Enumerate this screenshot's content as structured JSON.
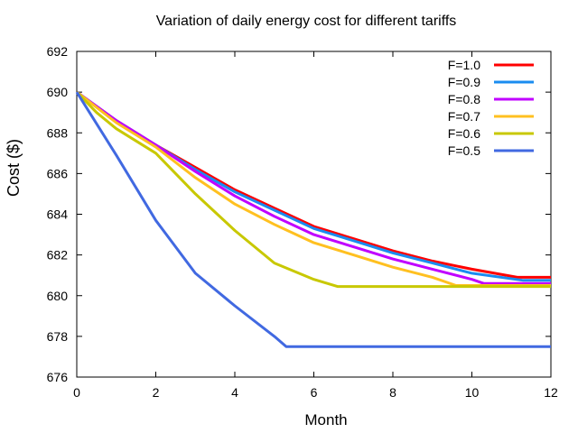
{
  "chart_data": {
    "type": "line",
    "title": "Variation of daily energy cost for different tariffs",
    "xlabel": "Month",
    "ylabel": "Cost ($)",
    "xlim": [
      0,
      12
    ],
    "ylim": [
      676,
      692
    ],
    "xticks": [
      0,
      2,
      4,
      6,
      8,
      10,
      12
    ],
    "yticks": [
      676,
      678,
      680,
      682,
      684,
      686,
      688,
      690,
      692
    ],
    "grid": false,
    "legend_position": "top-right",
    "series": [
      {
        "name": "F=1.0",
        "color": "#ff0000",
        "x": [
          0,
          1,
          2,
          3,
          4,
          5,
          6,
          7,
          8,
          9,
          10,
          11.15,
          12
        ],
        "y": [
          690,
          688.6,
          687.4,
          686.3,
          685.2,
          684.3,
          683.4,
          682.8,
          682.2,
          681.7,
          681.3,
          680.9,
          680.9
        ]
      },
      {
        "name": "F=0.9",
        "color": "#1a8cf0",
        "x": [
          0,
          1,
          2,
          3,
          4,
          5,
          6,
          7,
          8,
          9,
          10,
          11.3,
          12
        ],
        "y": [
          690,
          688.6,
          687.4,
          686.2,
          685.1,
          684.2,
          683.3,
          682.7,
          682.1,
          681.6,
          681.1,
          680.75,
          680.75
        ]
      },
      {
        "name": "F=0.8",
        "color": "#c000ff",
        "x": [
          0,
          1,
          2,
          3,
          4,
          5,
          6,
          7,
          8,
          9,
          10,
          10.3,
          12
        ],
        "y": [
          690,
          688.6,
          687.4,
          686.1,
          684.9,
          683.9,
          683.0,
          682.4,
          681.8,
          681.3,
          680.8,
          680.6,
          680.6
        ]
      },
      {
        "name": "F=0.7",
        "color": "#ffc020",
        "x": [
          0,
          1,
          2,
          3,
          4,
          5,
          6,
          7,
          8,
          9,
          9.6,
          12
        ],
        "y": [
          690,
          688.5,
          687.3,
          685.8,
          684.5,
          683.5,
          682.6,
          682.0,
          681.4,
          680.9,
          680.5,
          680.5
        ]
      },
      {
        "name": "F=0.6",
        "color": "#c8c800",
        "x": [
          0,
          0.5,
          1,
          2,
          3,
          4,
          5,
          6,
          6.6,
          12
        ],
        "y": [
          690,
          689,
          688.2,
          687.0,
          685.0,
          683.2,
          681.6,
          680.8,
          680.45,
          680.45
        ]
      },
      {
        "name": "F=0.5",
        "color": "#4169e1",
        "x": [
          0,
          1,
          2,
          3,
          4,
          5,
          5.3,
          12
        ],
        "y": [
          690,
          686.9,
          683.7,
          681.1,
          679.5,
          678.0,
          677.5,
          677.5
        ]
      }
    ]
  }
}
